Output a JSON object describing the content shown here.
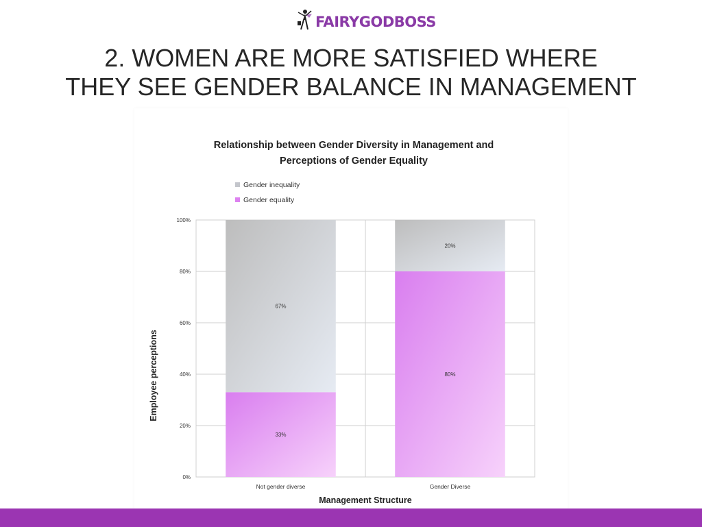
{
  "brand": {
    "name": "FAIRYGODBOSS",
    "color": "#8a3aa6",
    "icon": "fairy-figure-icon"
  },
  "slide": {
    "title_line1": "2. WOMEN ARE MORE SATISFIED WHERE",
    "title_line2": "THEY SEE GENDER BALANCE IN MANAGEMENT"
  },
  "footer": {
    "color": "#9b35b2"
  },
  "chart_data": {
    "type": "bar",
    "stacked": true,
    "percent": true,
    "title_line1": "Relationship between Gender Diversity in Management and",
    "title_line2": "Perceptions of Gender Equality",
    "xlabel": "Management Structure",
    "ylabel": "Employee perceptions",
    "categories": [
      "Not gender diverse",
      "Gender Diverse"
    ],
    "series": [
      {
        "name": "Gender equality",
        "values": [
          33,
          80
        ],
        "labels": [
          "33%",
          "80%"
        ],
        "color": "#dd82f0"
      },
      {
        "name": "Gender inequality",
        "values": [
          67,
          20
        ],
        "labels": [
          "67%",
          "20%"
        ],
        "color": "#c4c6cc"
      }
    ],
    "legend_order": [
      "Gender inequality",
      "Gender equality"
    ],
    "ylim": [
      0,
      100
    ],
    "yticks": [
      0,
      20,
      40,
      60,
      80,
      100
    ],
    "ytick_labels": [
      "0%",
      "20%",
      "40%",
      "60%",
      "80%",
      "100%"
    ],
    "legend_position": "top-left",
    "grid": true
  }
}
